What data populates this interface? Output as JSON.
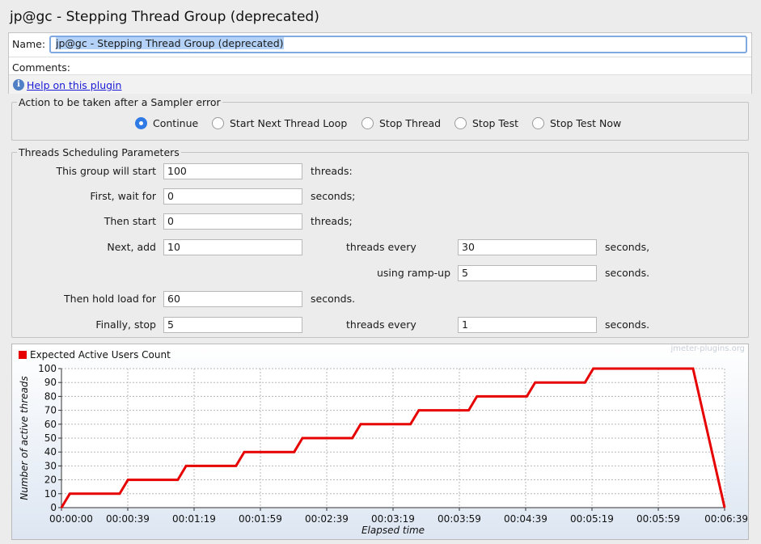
{
  "window": {
    "title": "jp@gc - Stepping Thread Group (deprecated)"
  },
  "name_panel": {
    "name_label": "Name:",
    "name_value": "jp@gc - Stepping Thread Group (deprecated)",
    "comments_label": "Comments:",
    "help_icon": "info-icon",
    "help_link": "Help on this plugin"
  },
  "sampler_error": {
    "legend": "Action to be taken after a Sampler error",
    "options": [
      {
        "label": "Continue",
        "checked": true
      },
      {
        "label": "Start Next Thread Loop",
        "checked": false
      },
      {
        "label": "Stop Thread",
        "checked": false
      },
      {
        "label": "Stop Test",
        "checked": false
      },
      {
        "label": "Stop Test Now",
        "checked": false
      }
    ]
  },
  "scheduling": {
    "legend": "Threads Scheduling Parameters",
    "group_start_label": "This group will start",
    "group_start_value": "100",
    "group_start_unit": "threads:",
    "first_wait_label": "First, wait for",
    "first_wait_value": "0",
    "first_wait_unit": "seconds;",
    "then_start_label": "Then start",
    "then_start_value": "0",
    "then_start_unit": "threads;",
    "next_add_label": "Next, add",
    "next_add_value": "10",
    "next_add_every_label": "threads every",
    "next_add_every_value": "30",
    "next_add_every_unit": "seconds,",
    "ramp_label": "using ramp-up",
    "ramp_value": "5",
    "ramp_unit": "seconds.",
    "hold_label": "Then hold load for",
    "hold_value": "60",
    "hold_unit": "seconds.",
    "stop_label": "Finally, stop",
    "stop_value": "5",
    "stop_every_label": "threads every",
    "stop_every_value": "1",
    "stop_every_unit": "seconds."
  },
  "chart_data": {
    "type": "line",
    "watermark": "jmeter-plugins.org",
    "xlabel": "Elapsed time",
    "ylabel": "Number of active threads",
    "ylim": [
      0,
      100
    ],
    "xlim_seconds": [
      0,
      399
    ],
    "y_ticks": [
      "0",
      "10",
      "20",
      "30",
      "40",
      "50",
      "60",
      "70",
      "80",
      "90",
      "100"
    ],
    "x_tick_labels": [
      "00:00:00",
      "00:00:39",
      "00:01:19",
      "00:01:59",
      "00:02:39",
      "00:03:19",
      "00:03:59",
      "00:04:39",
      "00:05:19",
      "00:05:59",
      "00:06:39"
    ],
    "grid": true,
    "legend_placement": "top-left",
    "series": [
      {
        "name": "Expected Active Users Count",
        "color": "#e60000",
        "x_seconds": [
          0,
          5,
          35,
          40,
          70,
          75,
          105,
          110,
          140,
          145,
          175,
          180,
          210,
          215,
          245,
          250,
          280,
          285,
          315,
          320,
          380,
          399
        ],
        "values": [
          0,
          10,
          10,
          20,
          20,
          30,
          30,
          40,
          40,
          50,
          50,
          60,
          60,
          70,
          70,
          80,
          80,
          90,
          90,
          100,
          100,
          0
        ]
      }
    ]
  }
}
